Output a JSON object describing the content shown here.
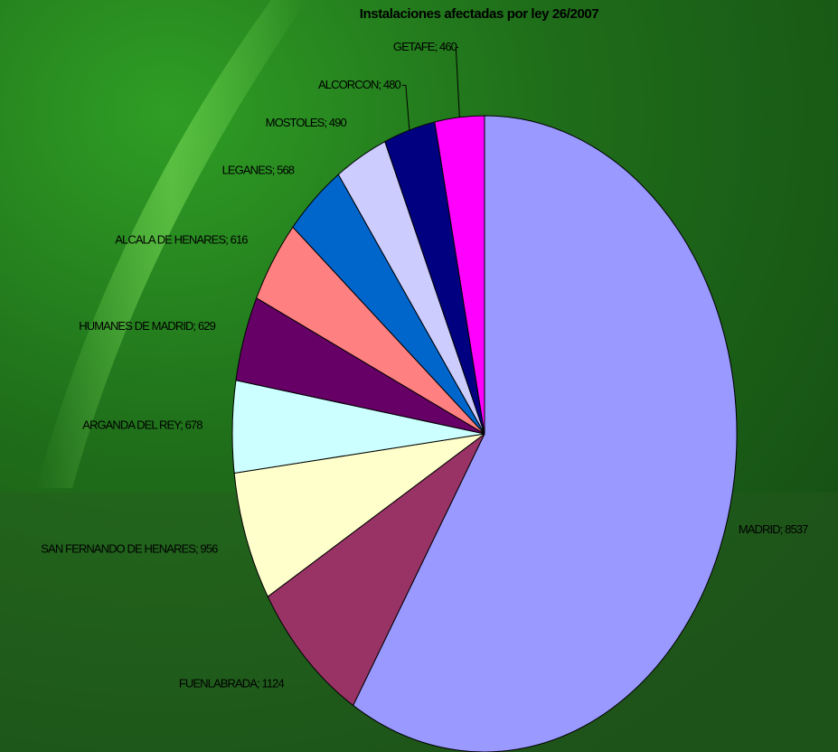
{
  "chart_data": {
    "type": "pie",
    "title": "Instalaciones afectadas por ley 26/2007",
    "categories": [
      "MADRID",
      "FUENLABRADA",
      "SAN FERNANDO DE HENARES",
      "ARGANDA DEL REY",
      "HUMANES DE MADRID",
      "ALCALA DE HENARES",
      "LEGANES",
      "MOSTOLES",
      "ALCORCON",
      "GETAFE"
    ],
    "values": [
      8537,
      1124,
      956,
      678,
      629,
      616,
      568,
      490,
      480,
      460
    ],
    "value_labels": [
      "MADRID; 8537",
      "FUENLABRADA; 1124",
      "SAN FERNANDO DE HENARES; 956",
      "ARGANDA DEL REY; 678",
      "HUMANES DE MADRID; 629",
      "ALCALA DE HENARES; 616",
      "LEGANES; 568",
      "MOSTOLES; 490",
      "ALCORCON; 480",
      "GETAFE; 460"
    ],
    "colors": [
      "#9999ff",
      "#993366",
      "#ffffcc",
      "#ccffff",
      "#660066",
      "#ff8080",
      "#0066cc",
      "#ccccff",
      "#000080",
      "#ff00ff"
    ]
  }
}
